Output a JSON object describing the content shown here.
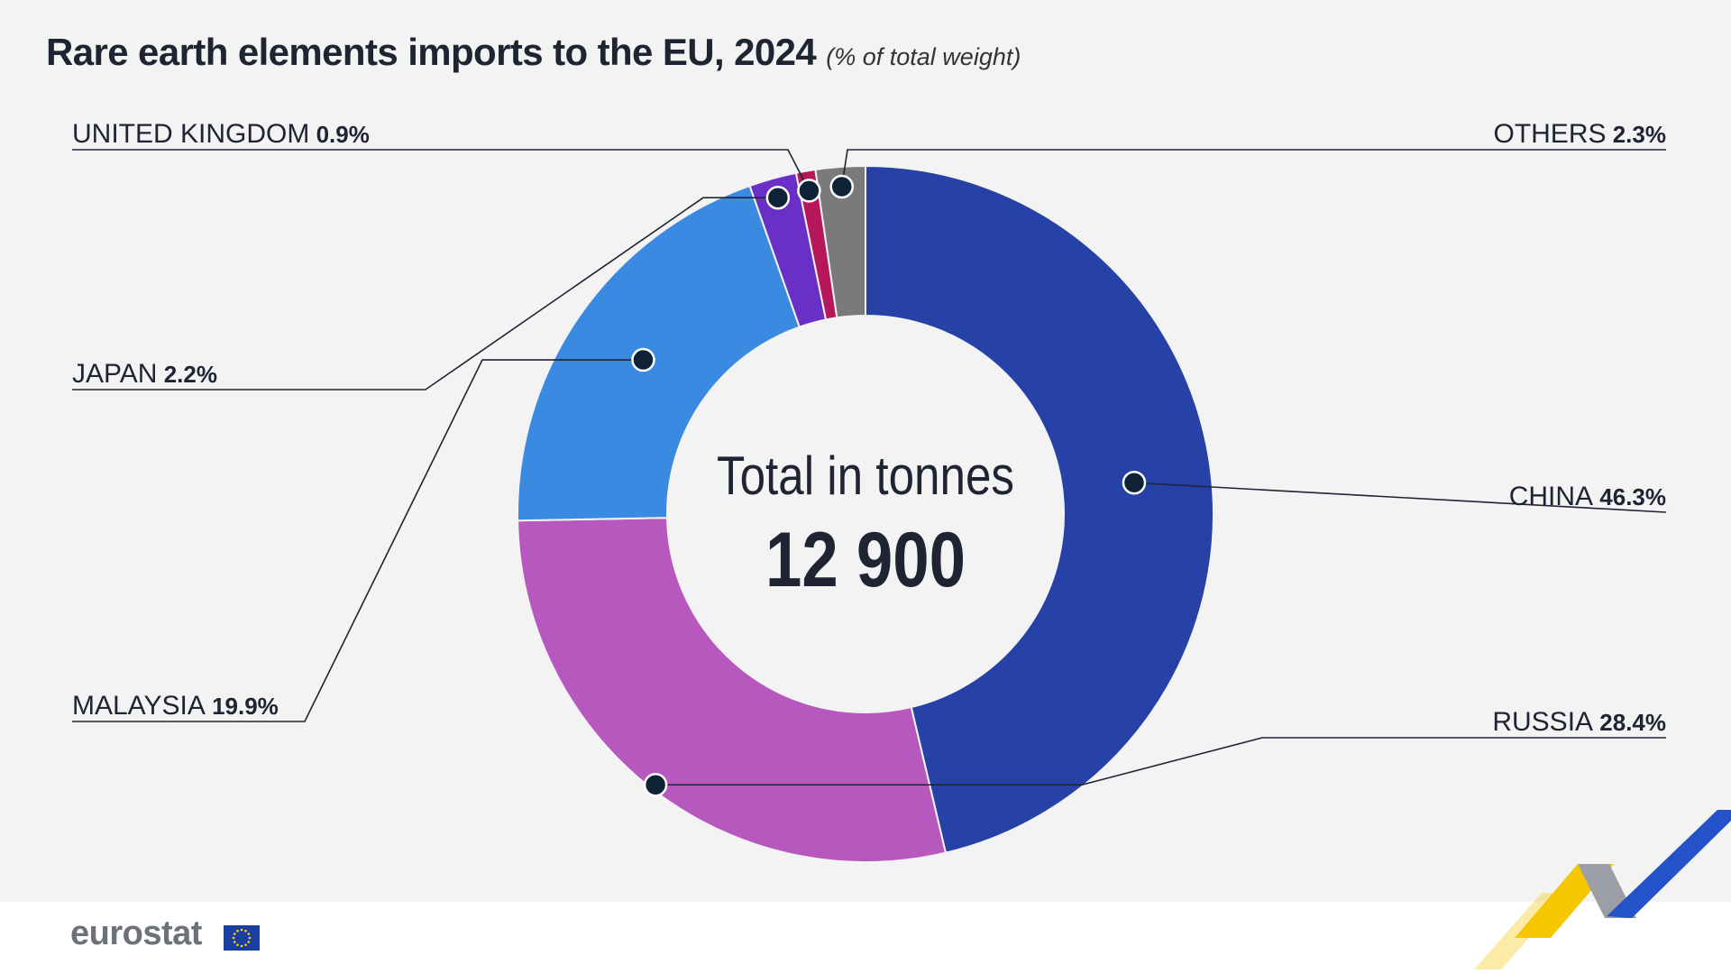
{
  "title": "Rare earth elements imports to the EU, 2024",
  "subtitle": "(% of total weight)",
  "center": {
    "label": "Total in tonnes",
    "value": "12 900"
  },
  "logo_text": "eurostat",
  "icons": [
    "eu-flag-icon",
    "eurostat-swoosh-icon"
  ],
  "chart_data": {
    "type": "pie",
    "title": "Rare earth elements imports to the EU, 2024",
    "subtitle": "(% of total weight)",
    "unit": "%",
    "total_label": "Total in tonnes",
    "total_value": 12900,
    "slices": [
      {
        "label": "CHINA",
        "value": 46.3,
        "value_text": "46.3%",
        "color": "#2642a6"
      },
      {
        "label": "RUSSIA",
        "value": 28.4,
        "value_text": "28.4%",
        "color": "#b658bd"
      },
      {
        "label": "MALAYSIA",
        "value": 19.9,
        "value_text": "19.9%",
        "color": "#3a8ae1"
      },
      {
        "label": "JAPAN",
        "value": 2.2,
        "value_text": "2.2%",
        "color": "#6a2fc7"
      },
      {
        "label": "UNITED KINGDOM",
        "value": 0.9,
        "value_text": "0.9%",
        "color": "#b5175a"
      },
      {
        "label": "OTHERS",
        "value": 2.3,
        "value_text": "2.3%",
        "color": "#7a7a7a"
      }
    ]
  }
}
